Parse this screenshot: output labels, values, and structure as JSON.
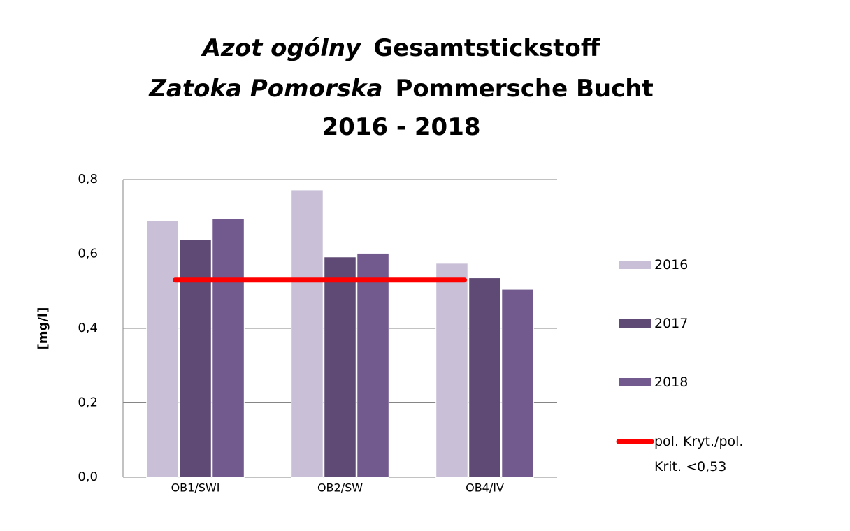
{
  "chart_data": {
    "type": "bar",
    "title_lines": [
      [
        "Azot ogólny",
        "Gesamtstickstoff"
      ],
      [
        "Zatoka Pomorska",
        "Pommersche Bucht"
      ],
      [
        "2016 - 2018"
      ]
    ],
    "y_label": "[mg/l]",
    "categories": [
      "OB1/SWI",
      "OB2/SW",
      "OB4/IV"
    ],
    "series": [
      {
        "name": "2016",
        "color": "#c9c0d7",
        "values": [
          0.69,
          0.772,
          0.575
        ]
      },
      {
        "name": "2017",
        "color": "#5e4a75",
        "values": [
          0.638,
          0.592,
          0.536
        ]
      },
      {
        "name": "2018",
        "color": "#725a8f",
        "values": [
          0.695,
          0.602,
          0.505
        ]
      },
      {
        "name": "pol. Kryt./pol. Krit. <0,53 mg/l (VI-IX)",
        "type": "line",
        "color": "#ff0000",
        "values": [
          0.53,
          0.53,
          0.53
        ]
      }
    ],
    "ylim": [
      0,
      0.8
    ],
    "yticks": [
      {
        "value": 0,
        "label": "0,0"
      },
      {
        "value": 0.2,
        "label": "0,2"
      },
      {
        "value": 0.4,
        "label": "0,4"
      },
      {
        "value": 0.6,
        "label": "0,6"
      },
      {
        "value": 0.8,
        "label": "0,8"
      }
    ],
    "grid": true,
    "legend": "right"
  }
}
